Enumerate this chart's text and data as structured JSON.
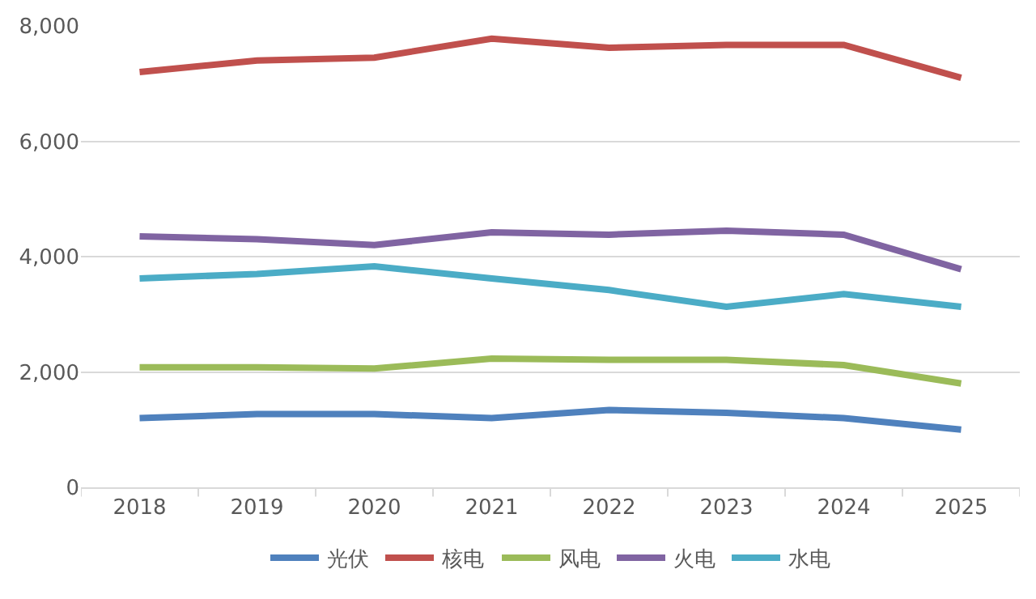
{
  "chart_data": {
    "type": "line",
    "categories": [
      "2018",
      "2019",
      "2020",
      "2021",
      "2022",
      "2023",
      "2024",
      "2025"
    ],
    "series": [
      {
        "name": "光伏",
        "color": "#4f81bd",
        "values": [
          1200,
          1270,
          1270,
          1200,
          1340,
          1290,
          1200,
          1000
        ]
      },
      {
        "name": "核电",
        "color": "#c0504d",
        "values": [
          7200,
          7400,
          7450,
          7780,
          7620,
          7670,
          7670,
          7100
        ]
      },
      {
        "name": "风电",
        "color": "#9bbb59",
        "values": [
          2080,
          2080,
          2060,
          2230,
          2210,
          2210,
          2120,
          1800
        ]
      },
      {
        "name": "火电",
        "color": "#8064a2",
        "values": [
          4350,
          4300,
          4200,
          4420,
          4380,
          4450,
          4380,
          3780
        ]
      },
      {
        "name": "水电",
        "color": "#4bacc6",
        "values": [
          3620,
          3700,
          3830,
          3620,
          3420,
          3130,
          3350,
          3130
        ]
      }
    ],
    "ylim": [
      0,
      8000
    ],
    "yticks": [
      {
        "value": 0,
        "label": "0"
      },
      {
        "value": 2000,
        "label": "2,000"
      },
      {
        "value": 4000,
        "label": "4,000"
      },
      {
        "value": 6000,
        "label": "6,000"
      },
      {
        "value": 8000,
        "label": "8,000"
      }
    ],
    "grid": "y",
    "legend": "bottom",
    "marker": "none",
    "line_style": "solid"
  }
}
